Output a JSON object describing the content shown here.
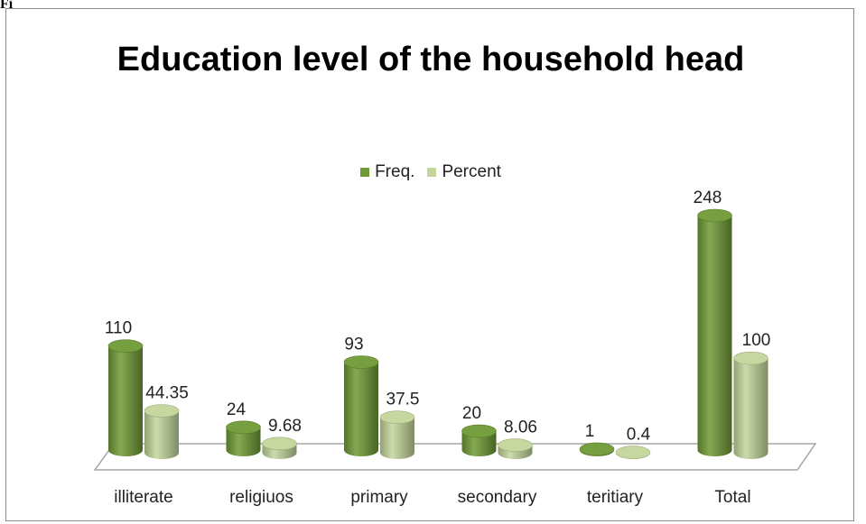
{
  "caption": "Fig",
  "chart_data": {
    "type": "bar",
    "style": "3d-cylinder",
    "title": "Education level of the household head",
    "categories": [
      "illiterate",
      "religiuos",
      "primary",
      "secondary",
      "teritiary",
      "Total"
    ],
    "series": [
      {
        "name": "Freq.",
        "values": [
          110,
          24,
          93,
          20,
          1,
          248
        ],
        "labels": [
          "110",
          "24",
          "93",
          "20",
          "1",
          "248"
        ],
        "color": "#6f9a35"
      },
      {
        "name": "Percent",
        "values": [
          44.35,
          9.68,
          37.5,
          8.06,
          0.4,
          100
        ],
        "labels": [
          "44.35",
          "9.68",
          "37.5",
          "8.06",
          "0.4",
          "100"
        ],
        "color": "#c3d69b"
      }
    ],
    "ylim": [
      0,
      248
    ],
    "legend_position": "top",
    "grid": false
  }
}
